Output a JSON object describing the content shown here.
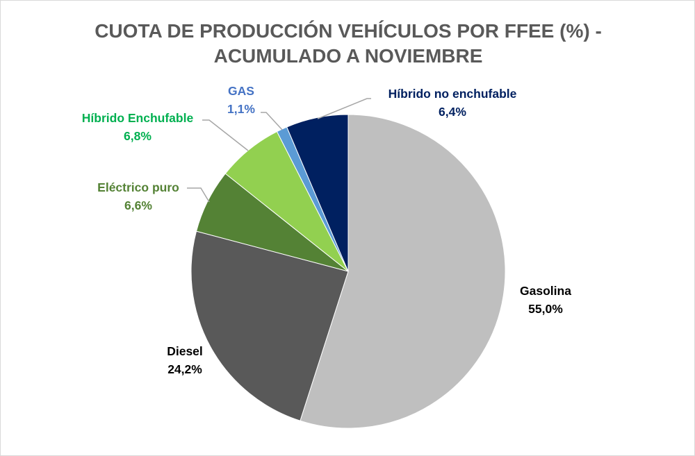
{
  "chart_data": {
    "type": "pie",
    "title_line1": "CUOTA DE PRODUCCIÓN VEHÍCULOS POR FFEE (%) -",
    "title_line2": "ACUMULADO A NOVIEMBRE",
    "start": "12 o'clock, clockwise",
    "slices": [
      {
        "name": "Gasolina",
        "value": 55.0,
        "label": "55,0%",
        "color": "#bfbfbf",
        "label_color": "#000000"
      },
      {
        "name": "Diesel",
        "value": 24.2,
        "label": "24,2%",
        "color": "#595959",
        "label_color": "#000000"
      },
      {
        "name": "Eléctrico puro",
        "value": 6.6,
        "label": "6,6%",
        "color": "#548235",
        "label_color": "#548235"
      },
      {
        "name": "Híbrido Enchufable",
        "value": 6.8,
        "label": "6,8%",
        "color": "#92d050",
        "label_color": "#00b050"
      },
      {
        "name": "GAS",
        "value": 1.1,
        "label": "1,1%",
        "color": "#5b9bd5",
        "label_color": "#4472c4"
      },
      {
        "name": "Híbrido no enchufable",
        "value": 6.4,
        "label": "6,4%",
        "color": "#002060",
        "label_color": "#002060"
      }
    ]
  }
}
